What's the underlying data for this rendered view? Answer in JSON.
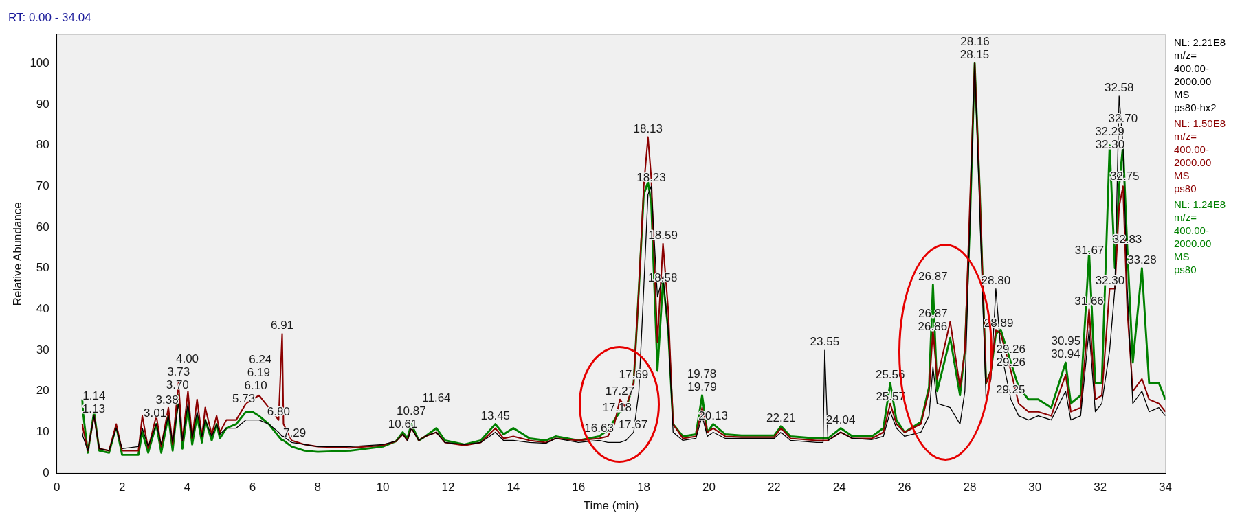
{
  "chart_data": {
    "type": "line",
    "title": "RT: 0.00 - 34.04",
    "xlabel": "Time (min)",
    "ylabel": "Relative Abundance",
    "x": [
      0.78,
      0.8,
      0.95,
      1.14,
      1.3,
      1.6,
      1.82,
      2.0,
      2.5,
      2.62,
      2.8,
      3.05,
      3.2,
      3.42,
      3.55,
      3.73,
      3.85,
      4.02,
      4.15,
      4.3,
      4.45,
      4.55,
      4.75,
      4.9,
      5.0,
      5.2,
      5.5,
      5.8,
      6.0,
      6.2,
      6.5,
      6.8,
      6.91,
      6.95,
      7.2,
      7.6,
      8.0,
      9.0,
      10.0,
      10.4,
      10.61,
      10.75,
      10.87,
      11.1,
      11.3,
      11.64,
      11.9,
      12.5,
      13.0,
      13.45,
      13.7,
      14.0,
      14.5,
      15.0,
      15.3,
      16.0,
      16.63,
      16.9,
      17.1,
      17.27,
      17.45,
      17.69,
      17.85,
      18.0,
      18.13,
      18.23,
      18.42,
      18.59,
      18.75,
      18.9,
      19.2,
      19.6,
      19.79,
      19.95,
      20.13,
      20.5,
      21.0,
      22.0,
      22.21,
      22.5,
      23.3,
      23.5,
      23.55,
      23.65,
      24.04,
      24.4,
      25.0,
      25.35,
      25.56,
      25.75,
      26.0,
      26.5,
      26.75,
      26.87,
      27.0,
      27.4,
      27.7,
      27.85,
      28.0,
      28.15,
      28.3,
      28.5,
      28.65,
      28.8,
      28.95,
      29.26,
      29.5,
      29.8,
      30.1,
      30.5,
      30.94,
      31.1,
      31.4,
      31.66,
      31.85,
      32.05,
      32.29,
      32.45,
      32.58,
      32.7,
      32.83,
      33.0,
      33.28,
      33.5,
      33.8,
      34.0
    ],
    "series": [
      {
        "name": "ps80-hx2",
        "color": "#000000",
        "values": [
          10,
          9,
          5.5,
          14,
          6,
          5.5,
          11,
          6,
          6.5,
          11,
          6.5,
          12,
          7,
          14,
          7.5,
          17,
          8,
          17,
          8.5,
          15,
          9,
          13,
          9,
          12,
          9.5,
          11,
          11,
          13,
          13,
          13,
          12,
          10,
          9,
          9,
          7.5,
          7,
          6.5,
          6.5,
          7,
          7.8,
          9.5,
          8,
          11,
          8,
          9,
          10,
          7.5,
          7,
          7.5,
          10,
          8,
          8,
          7.5,
          7.3,
          8.5,
          7.5,
          8,
          7.5,
          7.5,
          7.5,
          8,
          10,
          20,
          45,
          68,
          70,
          43,
          48,
          35,
          10,
          8,
          8.5,
          14,
          9,
          10,
          8.5,
          8.5,
          8.5,
          10,
          8,
          7.5,
          7.5,
          30,
          8,
          10,
          8.5,
          8.2,
          9,
          15,
          11,
          9,
          10,
          14,
          26,
          17,
          16,
          12,
          20,
          60,
          100,
          65,
          18,
          23,
          45,
          30,
          18,
          14,
          13,
          14,
          13,
          20,
          13,
          14,
          35,
          15,
          17,
          30,
          45,
          92,
          80,
          45,
          17,
          20,
          15,
          16,
          14
        ]
      },
      {
        "name": "ps80",
        "color": "#8b0000",
        "values": [
          12,
          11,
          5.5,
          14,
          6,
          5.5,
          12,
          5.5,
          5.5,
          14,
          6,
          14,
          6.5,
          16,
          7,
          22,
          8,
          20,
          8.5,
          18,
          9,
          16,
          9.5,
          14,
          10,
          13,
          13,
          17,
          18,
          19,
          16,
          13,
          34,
          12,
          8,
          7,
          6.5,
          6.2,
          6.8,
          7.8,
          9.5,
          8,
          11,
          8,
          9,
          10,
          7.5,
          6.8,
          7.5,
          11,
          8.5,
          9,
          8,
          7.5,
          8.5,
          8,
          8.5,
          9,
          12,
          18,
          16,
          22,
          45,
          70,
          82,
          72,
          32,
          56,
          40,
          12,
          8.5,
          9,
          16,
          10,
          11,
          9,
          8.8,
          8.8,
          11,
          8.5,
          8,
          8,
          8,
          8,
          10,
          8.5,
          8.5,
          10,
          17,
          12,
          10,
          12,
          20,
          35,
          23,
          37,
          21,
          30,
          65,
          100,
          70,
          22,
          25,
          35,
          34,
          25,
          17,
          15,
          15,
          14,
          24,
          15,
          16,
          40,
          18,
          19,
          45,
          45,
          65,
          70,
          40,
          20,
          23,
          18,
          17,
          15
        ]
      },
      {
        "name": "ps80",
        "color": "#008000",
        "values": [
          18,
          15,
          5,
          15,
          5.5,
          5,
          11.5,
          4.5,
          4.5,
          10,
          5,
          12,
          5,
          14,
          5.5,
          19,
          6,
          16,
          7,
          14,
          7.5,
          13,
          8,
          12,
          8.5,
          11,
          12,
          15,
          15,
          14,
          12,
          9,
          8,
          8,
          6.5,
          5.5,
          5.2,
          5.5,
          6.5,
          7.8,
          10,
          8.5,
          12,
          8,
          9,
          11,
          8,
          7,
          8,
          12,
          9.5,
          11,
          8.5,
          8,
          9,
          8,
          9,
          10.5,
          13,
          15,
          15.5,
          22,
          45,
          68,
          71,
          66,
          25,
          47,
          35,
          12,
          9,
          9.5,
          19,
          10,
          12,
          9.5,
          9.2,
          9.2,
          11.5,
          9,
          8.5,
          8.5,
          8.5,
          8.5,
          11,
          9,
          9,
          11,
          22,
          13,
          10,
          12.5,
          21,
          46,
          20,
          33,
          19,
          30,
          60,
          100,
          70,
          22,
          25,
          34,
          35,
          27,
          21,
          18,
          18,
          16,
          27,
          17,
          19,
          54,
          22,
          22,
          80,
          50,
          70,
          80,
          55,
          27,
          50,
          22,
          22,
          18
        ]
      }
    ],
    "xlim": [
      0,
      34
    ],
    "xticks": [
      0,
      2,
      4,
      6,
      8,
      10,
      12,
      14,
      16,
      18,
      20,
      22,
      24,
      26,
      28,
      30,
      32,
      34
    ],
    "ylim": [
      0,
      107
    ],
    "yticks": [
      0,
      10,
      20,
      30,
      40,
      50,
      60,
      70,
      80,
      90,
      100
    ],
    "grid": false,
    "legend": "right",
    "marker": "none",
    "line_style": "solid",
    "annotations": [
      "NL: 2.21E8 m/z= 400.00-2000.00 MS",
      "NL: 1.50E8 m/z= 400.00-2000.00 MS",
      "NL: 1.24E8 m/z= 400.00-2000.00 MS",
      {
        "text": "1.13",
        "x": 1.13,
        "y": 13.6
      },
      {
        "text": "1.14",
        "x": 1.14,
        "y": 15
      },
      {
        "text": "3.01",
        "x": 3.01,
        "y": 12.7
      },
      {
        "text": "3.38",
        "x": 3.38,
        "y": 14.3
      },
      {
        "text": "3.70",
        "x": 3.7,
        "y": 19.5
      },
      {
        "text": "3.73",
        "x": 3.73,
        "y": 22
      },
      {
        "text": "4.00",
        "x": 4.0,
        "y": 18.6
      },
      {
        "text": "5.73",
        "x": 5.73,
        "y": 16.1
      },
      {
        "text": "6.10",
        "x": 6.1,
        "y": 18.5
      },
      {
        "text": "6.19",
        "x": 6.19,
        "y": 19
      },
      {
        "text": "6.80",
        "x": 6.8,
        "y": 13
      },
      {
        "text": "6.24",
        "x": 6.24,
        "y": 18.6
      },
      {
        "text": "6.91",
        "x": 6.91,
        "y": 34
      },
      {
        "text": "7.29",
        "x": 7.29,
        "y": 7.8
      },
      {
        "text": "10.61",
        "x": 10.61,
        "y": 10
      },
      {
        "text": "10.87",
        "x": 10.87,
        "y": 12
      },
      {
        "text": "11.64",
        "x": 11.64,
        "y": 11
      },
      {
        "text": "13.45",
        "x": 13.45,
        "y": 12
      },
      {
        "text": "16.63",
        "x": 16.63,
        "y": 9
      },
      {
        "text": "17.67",
        "x": 17.67,
        "y": 9.8
      },
      {
        "text": "17.18",
        "x": 17.18,
        "y": 13.9
      },
      {
        "text": "17.27",
        "x": 17.27,
        "y": 18
      },
      {
        "text": "17.69",
        "x": 17.69,
        "y": 22
      },
      {
        "text": "18.23",
        "x": 18.23,
        "y": 70
      },
      {
        "text": "18.13",
        "x": 18.13,
        "y": 82
      },
      {
        "text": "18.58",
        "x": 18.58,
        "y": 45.7
      },
      {
        "text": "18.59",
        "x": 18.59,
        "y": 56
      },
      {
        "text": "19.79",
        "x": 19.79,
        "y": 19
      },
      {
        "text": "19.78",
        "x": 19.78,
        "y": 18.5
      },
      {
        "text": "20.13",
        "x": 20.13,
        "y": 12
      },
      {
        "text": "22.21",
        "x": 22.21,
        "y": 11.5
      },
      {
        "text": "23.55",
        "x": 23.55,
        "y": 30
      },
      {
        "text": "24.04",
        "x": 24.04,
        "y": 11
      },
      {
        "text": "25.57",
        "x": 25.57,
        "y": 16.7
      },
      {
        "text": "25.56",
        "x": 25.56,
        "y": 22
      },
      {
        "text": "26.86",
        "x": 26.86,
        "y": 33.8
      },
      {
        "text": "26.87",
        "x": 26.87,
        "y": 35
      },
      {
        "text": "26.87",
        "x": 26.87,
        "y": 46
      },
      {
        "text": "28.15",
        "x": 28.15,
        "y": 100
      },
      {
        "text": "28.16",
        "x": 28.16,
        "y": 98
      },
      {
        "text": "28.89",
        "x": 28.89,
        "y": 34.6
      },
      {
        "text": "28.80",
        "x": 28.8,
        "y": 45
      },
      {
        "text": "29.25",
        "x": 29.25,
        "y": 18.4
      },
      {
        "text": "29.26",
        "x": 29.26,
        "y": 25
      },
      {
        "text": "29.26",
        "x": 29.26,
        "y": 27
      },
      {
        "text": "30.94",
        "x": 30.94,
        "y": 27
      },
      {
        "text": "30.95",
        "x": 30.95,
        "y": 26.4
      },
      {
        "text": "31.66",
        "x": 31.66,
        "y": 40
      },
      {
        "text": "31.67",
        "x": 31.67,
        "y": 52.3
      },
      {
        "text": "32.30",
        "x": 32.3,
        "y": 45
      },
      {
        "text": "32.30",
        "x": 32.3,
        "y": 78.1
      },
      {
        "text": "32.29",
        "x": 32.29,
        "y": 80
      },
      {
        "text": "32.58",
        "x": 32.58,
        "y": 92
      },
      {
        "text": "32.83",
        "x": 32.83,
        "y": 55
      },
      {
        "text": "32.75",
        "x": 32.75,
        "y": 70.4
      },
      {
        "text": "32.70",
        "x": 32.7,
        "y": 80
      },
      {
        "text": "33.28",
        "x": 33.28,
        "y": 50
      }
    ]
  }
}
